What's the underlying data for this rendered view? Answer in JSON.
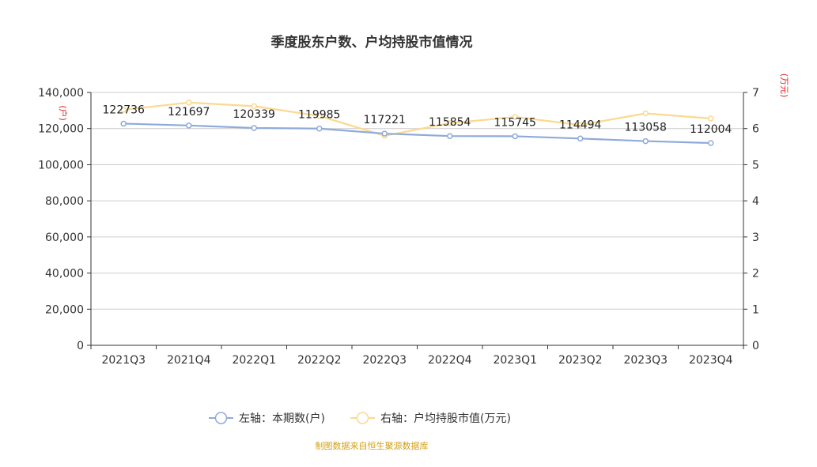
{
  "chart_data": {
    "type": "line",
    "title": "季度股东户数、户均持股市值情况",
    "categories": [
      "2021Q3",
      "2021Q4",
      "2022Q1",
      "2022Q2",
      "2022Q3",
      "2022Q4",
      "2023Q1",
      "2023Q2",
      "2023Q3",
      "2023Q4"
    ],
    "y_left": {
      "label": "(户)",
      "min": 0,
      "max": 140000,
      "step": 20000,
      "ticks": [
        "0",
        "20,000",
        "40,000",
        "60,000",
        "80,000",
        "100,000",
        "120,000",
        "140,000"
      ]
    },
    "y_right": {
      "label": "(万元)",
      "min": 0,
      "max": 7,
      "step": 1,
      "ticks": [
        "0",
        "1",
        "2",
        "3",
        "4",
        "5",
        "6",
        "7"
      ]
    },
    "series": [
      {
        "name": "左轴：本期数(户)",
        "axis": "left",
        "color": "#8eaadb",
        "values": [
          122736,
          121697,
          120339,
          119985,
          117221,
          115854,
          115745,
          114494,
          113058,
          112004
        ],
        "labels": [
          "122736",
          "121697",
          "120339",
          "119985",
          "117221",
          "115854",
          "115745",
          "114494",
          "113058",
          "112004"
        ]
      },
      {
        "name": "右轴：户均持股市值(万元)",
        "axis": "right",
        "color": "#fbd98f",
        "values": [
          6.52,
          6.72,
          6.62,
          6.35,
          5.8,
          6.15,
          6.32,
          6.1,
          6.42,
          6.28
        ]
      }
    ],
    "grid": true,
    "legend_position": "bottom-center"
  },
  "source_text": "制图数据来自恒生聚源数据库"
}
